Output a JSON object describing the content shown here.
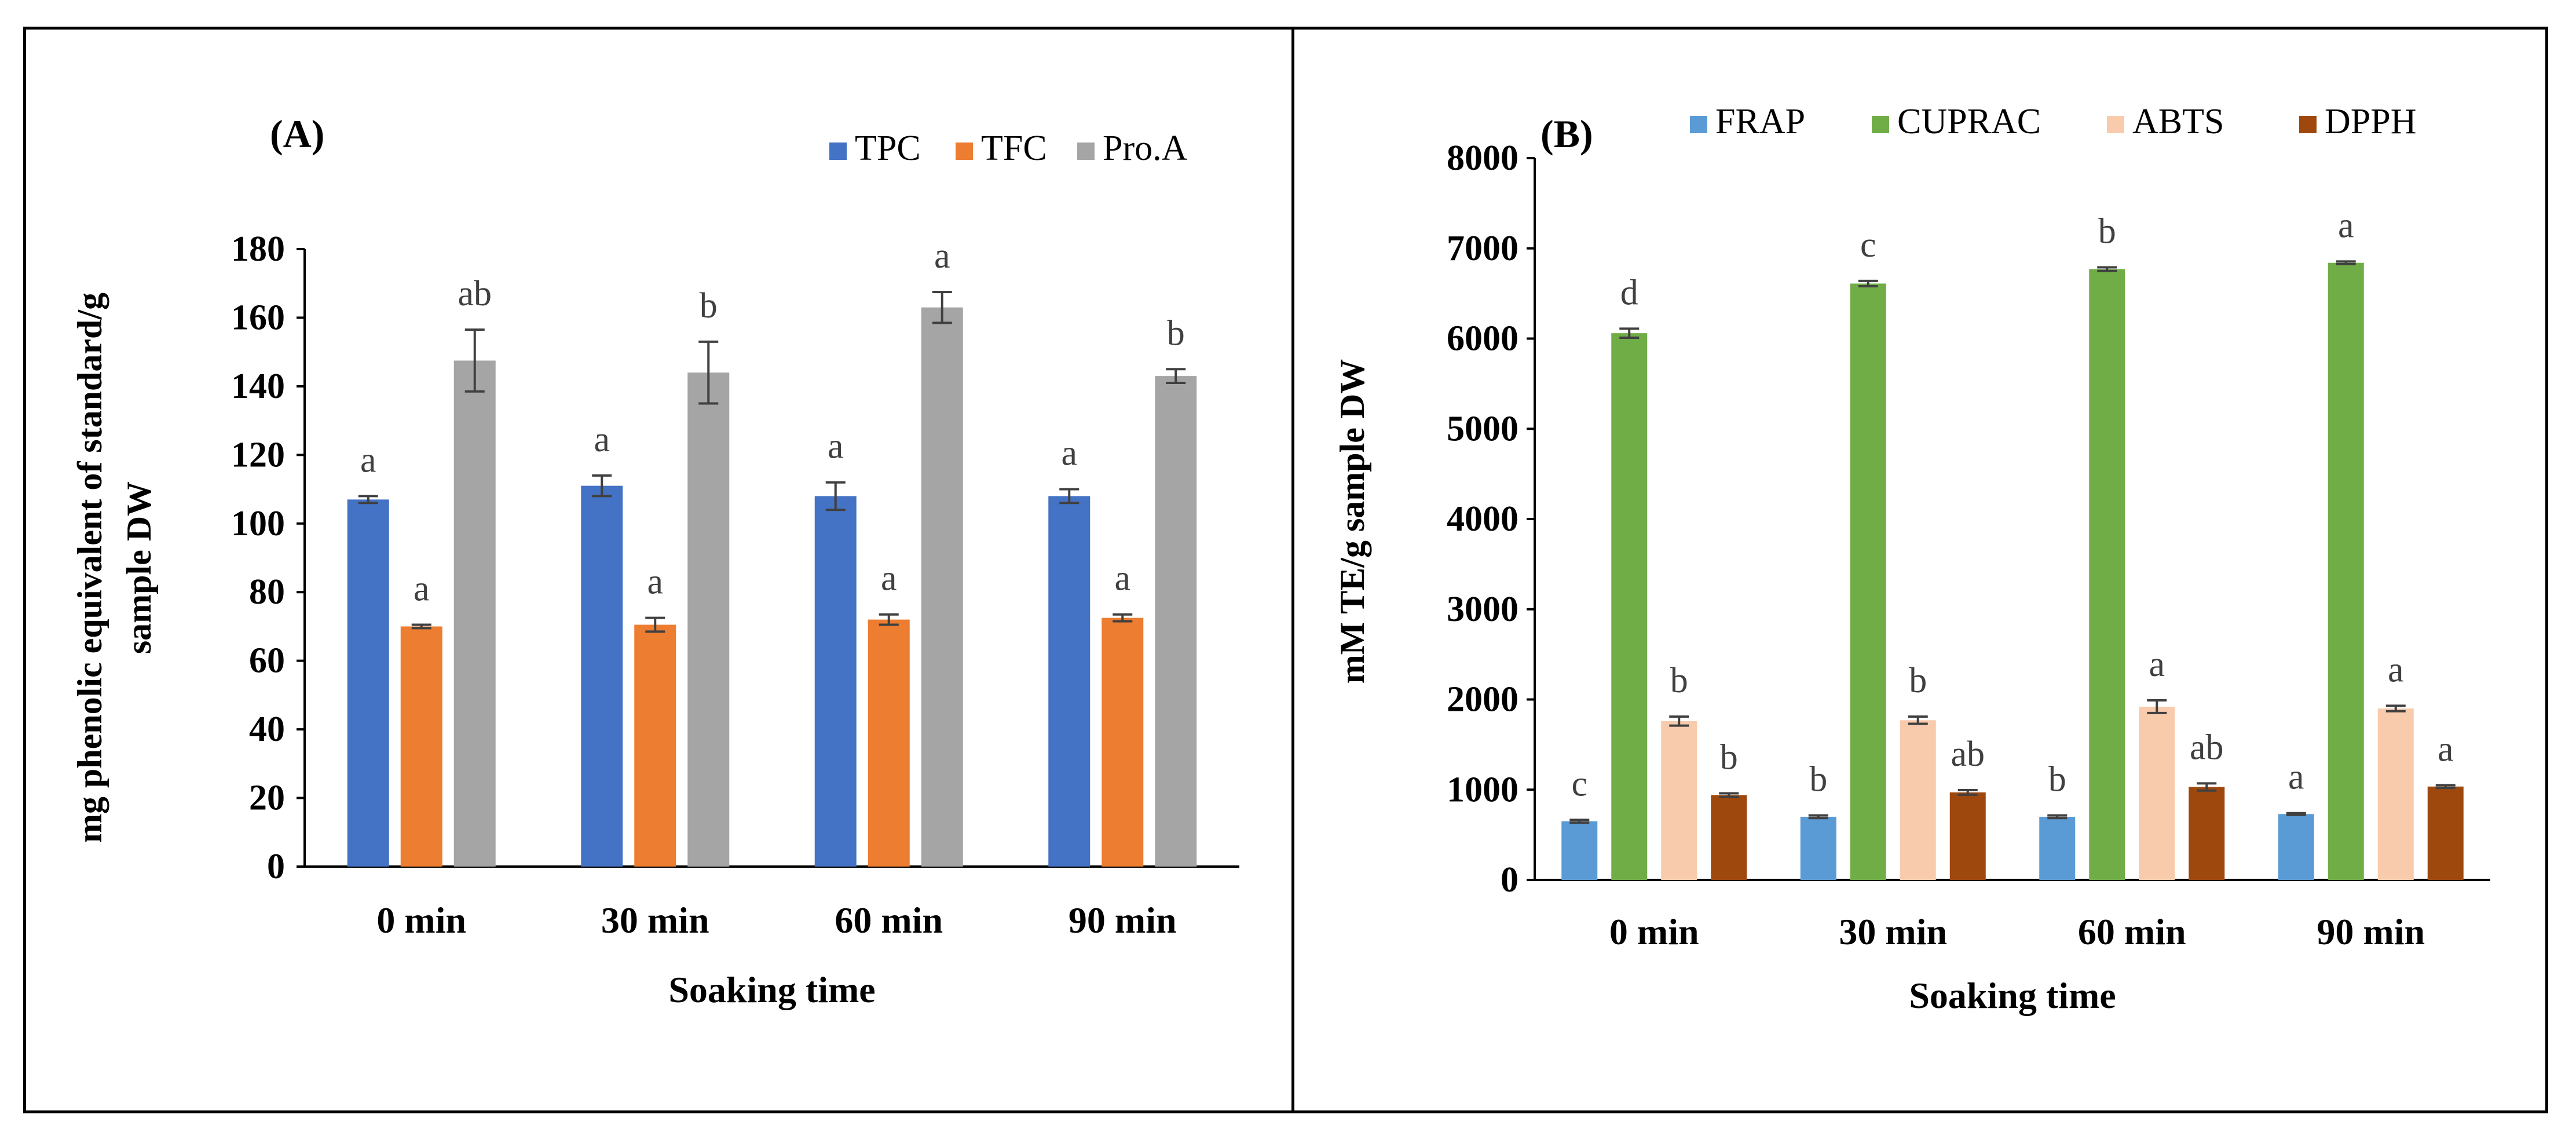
{
  "chart_data": [
    {
      "type": "bar",
      "panel_label": "(A)",
      "title": "",
      "xlabel": "Soaking time",
      "ylabel_lines": [
        "mg phenolic equivalent of standard/g",
        "sample DW"
      ],
      "ylim": [
        0,
        180
      ],
      "yticks": [
        0,
        20,
        40,
        60,
        80,
        100,
        120,
        140,
        160,
        180
      ],
      "grid": false,
      "legend_position": "top-right",
      "categories": [
        "0 min",
        "30 min",
        "60 min",
        "90 min"
      ],
      "series": [
        {
          "name": "TPC",
          "color": "#4472C4",
          "values": [
            107,
            111,
            108,
            108
          ],
          "errors": [
            1,
            3,
            4,
            2
          ],
          "letters": [
            "a",
            "a",
            "a",
            "a"
          ]
        },
        {
          "name": "TFC",
          "color": "#ED7D31",
          "values": [
            70,
            70.5,
            72,
            72.5
          ],
          "errors": [
            0.5,
            2,
            1.5,
            1
          ],
          "letters": [
            "a",
            "a",
            "a",
            "a"
          ]
        },
        {
          "name": "Pro.A",
          "color": "#A5A5A5",
          "values": [
            147.5,
            144,
            163,
            143
          ],
          "errors": [
            9,
            9,
            4.5,
            2
          ],
          "letters": [
            "ab",
            "b",
            "a",
            "b"
          ]
        }
      ]
    },
    {
      "type": "bar",
      "panel_label": "(B)",
      "title": "",
      "xlabel": "Soaking time",
      "ylabel_lines": [
        "mM  TE/g sample DW"
      ],
      "ylim": [
        0,
        8000
      ],
      "yticks": [
        0,
        1000,
        2000,
        3000,
        4000,
        5000,
        6000,
        7000,
        8000
      ],
      "grid": false,
      "legend_position": "top",
      "categories": [
        "0 min",
        "30 min",
        "60 min",
        "90 min"
      ],
      "series": [
        {
          "name": "FRAP",
          "color": "#5B9BD5",
          "values": [
            650,
            700,
            700,
            730
          ],
          "errors": [
            15,
            15,
            15,
            10
          ],
          "letters": [
            "c",
            "b",
            "b",
            "a"
          ]
        },
        {
          "name": "CUPRAC",
          "color": "#70AD47",
          "values": [
            6060,
            6610,
            6770,
            6840
          ],
          "errors": [
            50,
            30,
            20,
            15
          ],
          "letters": [
            "d",
            "c",
            "b",
            "a"
          ]
        },
        {
          "name": "ABTS",
          "color": "#F8CBAD",
          "values": [
            1760,
            1770,
            1920,
            1900
          ],
          "errors": [
            50,
            40,
            70,
            30
          ],
          "letters": [
            "b",
            "b",
            "a",
            "a"
          ]
        },
        {
          "name": "DPPH",
          "color": "#9E480E",
          "values": [
            940,
            970,
            1030,
            1035
          ],
          "errors": [
            20,
            25,
            40,
            15
          ],
          "letters": [
            "b",
            "ab",
            "ab",
            "a"
          ]
        }
      ]
    }
  ]
}
